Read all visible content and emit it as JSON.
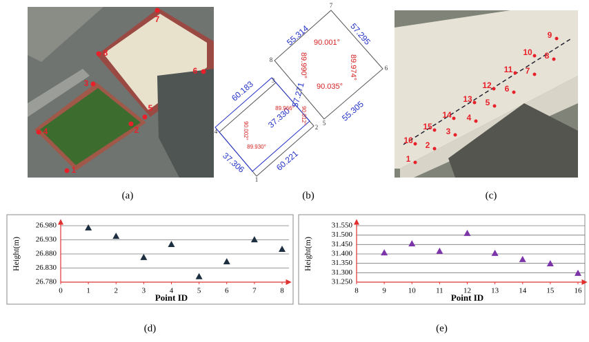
{
  "panels": {
    "a": {
      "caption": "(a)",
      "points": [
        "1",
        "2",
        "3",
        "4",
        "5",
        "6",
        "7",
        "8"
      ]
    },
    "b": {
      "caption": "(b)",
      "vertices": [
        "1",
        "2",
        "3",
        "4",
        "5",
        "6",
        "7",
        "8"
      ],
      "lengths": [
        "60.183",
        "37.330",
        "60.221",
        "37.306",
        "57.271",
        "55.314",
        "57.295",
        "55.305"
      ],
      "angles": [
        "90.001°",
        "89.990°",
        "89.974°",
        "90.035°",
        "89.966°",
        "90.012°",
        "90.002°",
        "89.930°"
      ]
    },
    "c": {
      "caption": "(c)",
      "points": [
        "1",
        "2",
        "3",
        "4",
        "5",
        "6",
        "7",
        "8",
        "9",
        "10",
        "11",
        "12",
        "13",
        "14",
        "15",
        "16"
      ]
    }
  },
  "chart_data": [
    {
      "type": "scatter",
      "caption": "(d)",
      "y_label": "Height(m)",
      "x_label": "Point ID",
      "x": [
        1,
        2,
        3,
        4,
        5,
        6,
        7,
        8
      ],
      "values": [
        26.973,
        26.943,
        26.868,
        26.914,
        26.8,
        26.853,
        26.931,
        26.897
      ],
      "color": "#1c2e40",
      "marker": "triangle",
      "xlim": [
        0,
        8
      ],
      "xticks": [
        0,
        1,
        2,
        3,
        4,
        5,
        6,
        7,
        8
      ],
      "ylim": [
        26.78,
        26.98
      ],
      "yticks": [
        {
          "value": 26.78,
          "label": "26.780"
        },
        {
          "value": 26.83,
          "label": "26.830"
        },
        {
          "value": 26.88,
          "label": "26.880"
        },
        {
          "value": 26.93,
          "label": "26.930"
        },
        {
          "value": 26.98,
          "label": "26.980"
        }
      ],
      "grid": true
    },
    {
      "type": "scatter",
      "caption": "(e)",
      "y_label": "Height(m)",
      "x_label": "Point ID",
      "x": [
        9,
        10,
        11,
        12,
        13,
        14,
        15,
        16
      ],
      "values": [
        31.407,
        31.455,
        31.415,
        31.51,
        31.404,
        31.371,
        31.349,
        31.298
      ],
      "color": "#7b35a8",
      "marker": "triangle",
      "xlim": [
        8,
        16
      ],
      "xticks": [
        8,
        9,
        10,
        11,
        12,
        13,
        14,
        15,
        16
      ],
      "ylim": [
        31.25,
        31.55
      ],
      "yticks": [
        {
          "value": 31.25,
          "label": "31.250"
        },
        {
          "value": 31.3,
          "label": "31.300"
        },
        {
          "value": 31.35,
          "label": "31.350"
        },
        {
          "value": 31.4,
          "label": "31.400"
        },
        {
          "value": 31.45,
          "label": "31.450"
        },
        {
          "value": 31.5,
          "label": "31.500"
        },
        {
          "value": 31.55,
          "label": "31.550"
        }
      ],
      "grid": true
    }
  ]
}
